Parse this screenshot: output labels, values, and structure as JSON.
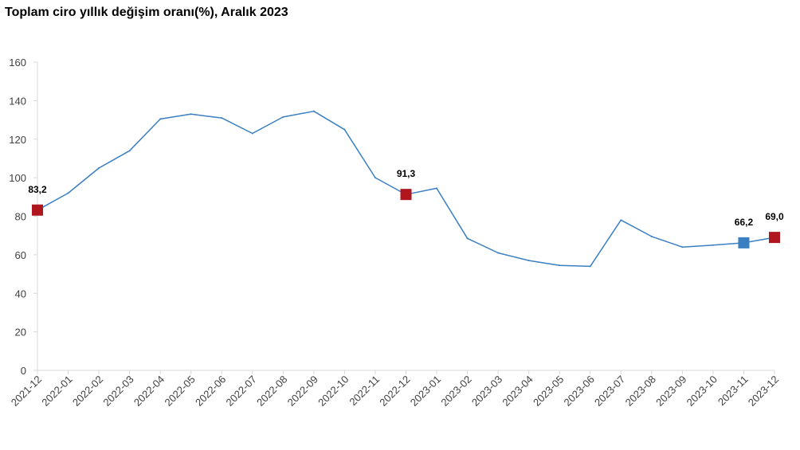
{
  "chart_data": {
    "type": "line",
    "title": "Toplam ciro yıllık değişim oranı(%), Aralık 2023",
    "xlabel": "",
    "ylabel": "",
    "ylim": [
      0,
      160
    ],
    "yticks": [
      "0",
      "20",
      "40",
      "60",
      "80",
      "100",
      "120",
      "140",
      "160"
    ],
    "categories": [
      "2021-12",
      "2022-01",
      "2022-02",
      "2022-03",
      "2022-04",
      "2022-05",
      "2022-06",
      "2022-07",
      "2022-08",
      "2022-09",
      "2022-10",
      "2022-11",
      "2022-12",
      "2023-01",
      "2023-02",
      "2023-03",
      "2023-04",
      "2023-05",
      "2023-06",
      "2023-07",
      "2023-08",
      "2023-09",
      "2023-10",
      "2023-11",
      "2023-12"
    ],
    "series": [
      {
        "values": [
          83.2,
          92,
          105,
          114,
          130.5,
          133,
          131,
          123,
          131.5,
          134.5,
          125,
          100,
          91.3,
          94.5,
          68.5,
          61,
          57,
          54.5,
          54,
          78,
          69.5,
          64,
          65,
          66.2,
          69.0
        ],
        "color": "#3a7fc1"
      }
    ],
    "highlighted_points": [
      {
        "category": "2021-12",
        "value": 83.2,
        "label": "83,2",
        "color": "#b0161e"
      },
      {
        "category": "2022-12",
        "value": 91.3,
        "label": "91,3",
        "color": "#b0161e"
      },
      {
        "category": "2023-11",
        "value": 66.2,
        "label": "66,2",
        "color": "#3a7fc1"
      },
      {
        "category": "2023-12",
        "value": 69.0,
        "label": "69,0",
        "color": "#b0161e"
      }
    ],
    "grid": false,
    "legend": "none"
  }
}
